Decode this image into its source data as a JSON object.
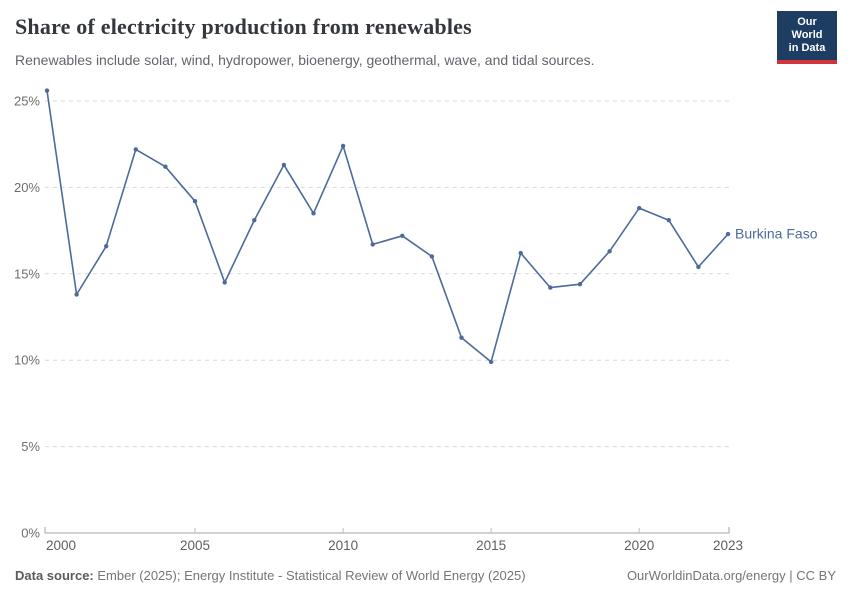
{
  "header": {
    "title": "Share of electricity production from renewables",
    "subtitle": "Renewables include solar, wind, hydropower, bioenergy, geothermal, wave, and tidal sources.",
    "logo": {
      "line1": "Our World",
      "line2": "in Data"
    }
  },
  "chart_data": {
    "type": "line",
    "title": "Share of electricity production from renewables",
    "x": [
      2000,
      2001,
      2002,
      2003,
      2004,
      2005,
      2006,
      2007,
      2008,
      2009,
      2010,
      2011,
      2012,
      2013,
      2014,
      2015,
      2016,
      2017,
      2018,
      2019,
      2020,
      2021,
      2022,
      2023
    ],
    "series": [
      {
        "name": "Burkina Faso",
        "color": "#4c6a9c",
        "values": [
          25.6,
          13.8,
          16.6,
          22.2,
          21.2,
          19.2,
          14.5,
          18.1,
          21.3,
          18.5,
          22.4,
          16.7,
          17.2,
          16.0,
          11.3,
          9.9,
          16.2,
          14.2,
          14.4,
          16.3,
          18.8,
          18.1,
          15.4,
          17.3
        ]
      }
    ],
    "x_ticks": [
      2000,
      2005,
      2010,
      2015,
      2020,
      2023
    ],
    "y_ticks": {
      "values": [
        0,
        5,
        10,
        15,
        20,
        25
      ],
      "labels": [
        "0%",
        "5%",
        "10%",
        "15%",
        "20%",
        "25%"
      ]
    },
    "xlim": [
      2000,
      2023
    ],
    "ylim": [
      0,
      26
    ],
    "grid": "horizontal-dashed",
    "legend": "series-name-at-line-end",
    "unit": "%"
  },
  "footer": {
    "datasource_label": "Data source:",
    "datasource_text": " Ember (2025); Energy Institute - Statistical Review of World Energy (2025)",
    "right_text": "OurWorldinData.org/energy | CC BY"
  },
  "colors": {
    "line": "#4c6a9c",
    "grid": "#d9d9d9",
    "axis": "#a3a3a3",
    "tick": "#bdbdbd",
    "y_tick_text": "#6e6e6e",
    "x_tick_text": "#5f5f5f",
    "logo_bg": "#1d3d63",
    "logo_stripe": "#d1353b"
  }
}
